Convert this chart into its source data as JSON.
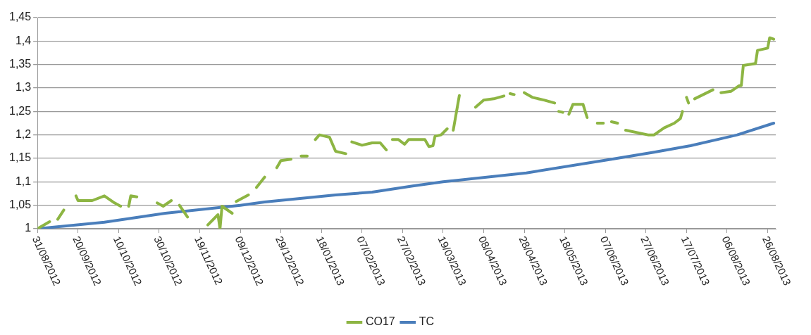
{
  "chart_data": {
    "type": "line",
    "xlim": [
      "2012-08-31",
      "2013-08-30"
    ],
    "xticks": [
      {
        "value": "2012-08-31",
        "label": "31/08/2012"
      },
      {
        "value": "2012-09-20",
        "label": "20/09/2012"
      },
      {
        "value": "2012-10-10",
        "label": "10/10/2012"
      },
      {
        "value": "2012-10-30",
        "label": "30/10/2012"
      },
      {
        "value": "2012-11-19",
        "label": "19/11/2012"
      },
      {
        "value": "2012-12-09",
        "label": "09/12/2012"
      },
      {
        "value": "2012-12-29",
        "label": "29/12/2012"
      },
      {
        "value": "2013-01-18",
        "label": "18/01/2013"
      },
      {
        "value": "2013-02-07",
        "label": "07/02/2013"
      },
      {
        "value": "2013-02-27",
        "label": "27/02/2013"
      },
      {
        "value": "2013-03-19",
        "label": "19/03/2013"
      },
      {
        "value": "2013-04-08",
        "label": "08/04/2013"
      },
      {
        "value": "2013-04-28",
        "label": "28/04/2013"
      },
      {
        "value": "2013-05-18",
        "label": "18/05/2013"
      },
      {
        "value": "2013-06-07",
        "label": "07/06/2013"
      },
      {
        "value": "2013-06-27",
        "label": "27/06/2013"
      },
      {
        "value": "2013-07-17",
        "label": "17/07/2013"
      },
      {
        "value": "2013-08-06",
        "label": "06/08/2013"
      },
      {
        "value": "2013-08-26",
        "label": "26/08/2013"
      }
    ],
    "ylim": [
      1,
      1.45
    ],
    "yticks": [
      {
        "value": 1,
        "label": "1"
      },
      {
        "value": 1.05,
        "label": "1,05"
      },
      {
        "value": 1.1,
        "label": "1,1"
      },
      {
        "value": 1.15,
        "label": "1,15"
      },
      {
        "value": 1.2,
        "label": "1,2"
      },
      {
        "value": 1.25,
        "label": "1,25"
      },
      {
        "value": 1.3,
        "label": "1,3"
      },
      {
        "value": 1.35,
        "label": "1,35"
      },
      {
        "value": 1.4,
        "label": "1,4"
      },
      {
        "value": 1.45,
        "label": "1,45"
      }
    ],
    "grid": "y",
    "legend": "bottom",
    "marker": "none",
    "line_style": "solid",
    "series": [
      {
        "name": "CO17",
        "color": "#8db543",
        "x": [
          "2012-08-31",
          "2012-09-06",
          "2012-09-08",
          "2012-09-10",
          "2012-09-13",
          "2012-09-16",
          "2012-09-19",
          "2012-09-20",
          "2012-09-27",
          "2012-10-03",
          "2012-10-08",
          "2012-10-11",
          "2012-10-13",
          "2012-10-15",
          "2012-10-16",
          "2012-10-19",
          "2012-10-24",
          "2012-10-29",
          "2012-11-01",
          "2012-11-05",
          "2012-11-07",
          "2012-11-09",
          "2012-11-13",
          "2012-11-18",
          "2012-11-23",
          "2012-11-28",
          "2012-11-29",
          "2012-11-30",
          "2012-12-05",
          "2012-12-06",
          "2012-12-07",
          "2012-12-13",
          "2012-12-15",
          "2012-12-17",
          "2012-12-21",
          "2012-12-24",
          "2012-12-27",
          "2012-12-29",
          "2013-01-03",
          "2013-01-05",
          "2013-01-08",
          "2013-01-11",
          "2013-01-13",
          "2013-01-15",
          "2013-01-17",
          "2013-01-22",
          "2013-01-25",
          "2013-01-30",
          "2013-02-01",
          "2013-02-02",
          "2013-02-07",
          "2013-02-12",
          "2013-02-16",
          "2013-02-19",
          "2013-02-21",
          "2013-02-22",
          "2013-02-25",
          "2013-02-28",
          "2013-03-02",
          "2013-03-10",
          "2013-03-12",
          "2013-03-14",
          "2013-03-15",
          "2013-03-18",
          "2013-03-21",
          "2013-03-22",
          "2013-03-24",
          "2013-03-27",
          "2013-04-01",
          "2013-04-04",
          "2013-04-08",
          "2013-04-13",
          "2013-04-18",
          "2013-04-20",
          "2013-04-21",
          "2013-04-23",
          "2013-04-25",
          "2013-04-28",
          "2013-05-02",
          "2013-05-08",
          "2013-05-13",
          "2013-05-14",
          "2013-05-15",
          "2013-05-17",
          "2013-05-18",
          "2013-05-20",
          "2013-05-22",
          "2013-05-24",
          "2013-05-27",
          "2013-05-29",
          "2013-06-01",
          "2013-06-03",
          "2013-06-06",
          "2013-06-08",
          "2013-06-10",
          "2013-06-13",
          "2013-06-15",
          "2013-06-17",
          "2013-06-28",
          "2013-07-01",
          "2013-07-06",
          "2013-07-11",
          "2013-07-14",
          "2013-07-15",
          "2013-07-16",
          "2013-07-17",
          "2013-07-18",
          "2013-07-20",
          "2013-07-21",
          "2013-07-30",
          "2013-08-01",
          "2013-08-03",
          "2013-08-08",
          "2013-08-12",
          "2013-08-13",
          "2013-08-14",
          "2013-08-20",
          "2013-08-21",
          "2013-08-26",
          "2013-08-27",
          "2013-08-29"
        ],
        "values": [
          1.0,
          1.015,
          null,
          1.02,
          1.04,
          null,
          1.07,
          1.06,
          1.06,
          1.07,
          1.055,
          1.048,
          null,
          1.048,
          1.07,
          1.068,
          null,
          1.055,
          1.048,
          1.06,
          null,
          1.05,
          1.025,
          null,
          1.008,
          1.03,
          1.0,
          1.048,
          1.033,
          null,
          1.058,
          1.072,
          null,
          1.088,
          1.11,
          null,
          1.13,
          1.145,
          1.148,
          null,
          1.155,
          1.155,
          null,
          1.19,
          1.2,
          1.195,
          1.165,
          1.16,
          null,
          1.185,
          1.178,
          1.183,
          1.183,
          1.168,
          null,
          1.19,
          1.19,
          1.18,
          1.19,
          1.19,
          1.175,
          1.177,
          1.197,
          1.2,
          1.213,
          null,
          1.21,
          1.284,
          null,
          1.259,
          1.274,
          1.277,
          1.283,
          null,
          1.288,
          1.286,
          null,
          1.29,
          1.28,
          1.274,
          1.268,
          null,
          1.25,
          1.248,
          null,
          1.244,
          1.265,
          1.265,
          1.265,
          1.237,
          null,
          1.225,
          1.225,
          null,
          1.228,
          1.225,
          null,
          1.21,
          1.2,
          1.2,
          1.215,
          1.225,
          1.235,
          1.25,
          null,
          1.28,
          1.268,
          null,
          1.277,
          1.296,
          null,
          1.29,
          1.293,
          1.305,
          1.305,
          1.348,
          1.352,
          1.38,
          1.385,
          1.407,
          1.404
        ]
      },
      {
        "name": "TC",
        "color": "#4a7ebb",
        "x": [
          "2012-08-31",
          "2012-10-03",
          "2012-11-02",
          "2012-12-09",
          "2012-12-21",
          "2013-01-25",
          "2013-02-12",
          "2013-03-04",
          "2013-03-19",
          "2013-04-29",
          "2013-06-10",
          "2013-07-01",
          "2013-07-19",
          "2013-08-11",
          "2013-08-29"
        ],
        "values": [
          1.0,
          1.014,
          1.033,
          1.05,
          1.057,
          1.072,
          1.078,
          1.091,
          1.1,
          1.119,
          1.148,
          1.163,
          1.177,
          1.2,
          1.225
        ]
      }
    ]
  }
}
